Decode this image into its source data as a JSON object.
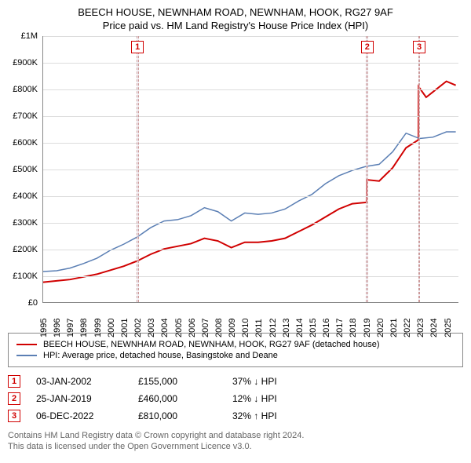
{
  "title_line1": "BEECH HOUSE, NEWNHAM ROAD, NEWNHAM, HOOK, RG27 9AF",
  "title_line2": "Price paid vs. HM Land Registry's House Price Index (HPI)",
  "chart": {
    "type": "line",
    "background_color": "#ffffff",
    "grid_color": "#dddddd",
    "axis_color": "#888888",
    "y": {
      "min": 0,
      "max": 1000000,
      "step": 100000,
      "labels": [
        "£0",
        "£100K",
        "£200K",
        "£300K",
        "£400K",
        "£500K",
        "£600K",
        "£700K",
        "£800K",
        "£900K",
        "£1M"
      ]
    },
    "x": {
      "min": 1995,
      "max": 2025.9,
      "labels": [
        "1995",
        "1996",
        "1997",
        "1998",
        "1999",
        "2000",
        "2001",
        "2002",
        "2003",
        "2004",
        "2005",
        "2006",
        "2007",
        "2008",
        "2009",
        "2010",
        "2011",
        "2012",
        "2013",
        "2014",
        "2015",
        "2016",
        "2017",
        "2018",
        "2019",
        "2020",
        "2021",
        "2022",
        "2023",
        "2024",
        "2025"
      ]
    },
    "markers": [
      {
        "n": "1",
        "year": 2002.01
      },
      {
        "n": "2",
        "year": 2019.07
      },
      {
        "n": "3",
        "year": 2022.93
      }
    ],
    "marker_band_width_years": 0.16,
    "marker_band_color": "rgba(230,230,240,0.5)",
    "marker_border_color": "#cc9999",
    "series": [
      {
        "name": "property",
        "label": "BEECH HOUSE, NEWNHAM ROAD, NEWNHAM, HOOK, RG27 9AF (detached house)",
        "color": "#d00000",
        "width": 2,
        "points": [
          [
            1995,
            75000
          ],
          [
            1996,
            80000
          ],
          [
            1997,
            85000
          ],
          [
            1998,
            95000
          ],
          [
            1999,
            105000
          ],
          [
            2000,
            120000
          ],
          [
            2001,
            135000
          ],
          [
            2002.01,
            155000
          ],
          [
            2003,
            180000
          ],
          [
            2004,
            200000
          ],
          [
            2005,
            210000
          ],
          [
            2006,
            220000
          ],
          [
            2007,
            240000
          ],
          [
            2008,
            230000
          ],
          [
            2009,
            205000
          ],
          [
            2010,
            225000
          ],
          [
            2011,
            225000
          ],
          [
            2012,
            230000
          ],
          [
            2013,
            240000
          ],
          [
            2014,
            265000
          ],
          [
            2015,
            290000
          ],
          [
            2016,
            320000
          ],
          [
            2017,
            350000
          ],
          [
            2018,
            370000
          ],
          [
            2019.06,
            375000
          ],
          [
            2019.07,
            460000
          ],
          [
            2020,
            455000
          ],
          [
            2021,
            505000
          ],
          [
            2022,
            580000
          ],
          [
            2022.92,
            610000
          ],
          [
            2022.93,
            810000
          ],
          [
            2023.5,
            770000
          ],
          [
            2024,
            790000
          ],
          [
            2025,
            830000
          ],
          [
            2025.7,
            815000
          ]
        ]
      },
      {
        "name": "hpi",
        "label": "HPI: Average price, detached house, Basingstoke and Deane",
        "color": "#5b7fb4",
        "width": 1.5,
        "points": [
          [
            1995,
            115000
          ],
          [
            1996,
            118000
          ],
          [
            1997,
            128000
          ],
          [
            1998,
            145000
          ],
          [
            1999,
            165000
          ],
          [
            2000,
            195000
          ],
          [
            2001,
            218000
          ],
          [
            2002,
            245000
          ],
          [
            2003,
            280000
          ],
          [
            2004,
            305000
          ],
          [
            2005,
            310000
          ],
          [
            2006,
            325000
          ],
          [
            2007,
            355000
          ],
          [
            2008,
            340000
          ],
          [
            2009,
            305000
          ],
          [
            2010,
            335000
          ],
          [
            2011,
            330000
          ],
          [
            2012,
            335000
          ],
          [
            2013,
            350000
          ],
          [
            2014,
            380000
          ],
          [
            2015,
            405000
          ],
          [
            2016,
            445000
          ],
          [
            2017,
            475000
          ],
          [
            2018,
            495000
          ],
          [
            2019,
            510000
          ],
          [
            2020,
            518000
          ],
          [
            2021,
            565000
          ],
          [
            2022,
            635000
          ],
          [
            2023,
            615000
          ],
          [
            2024,
            620000
          ],
          [
            2025,
            640000
          ],
          [
            2025.7,
            640000
          ]
        ]
      }
    ]
  },
  "legend": [
    {
      "color": "#d00000",
      "label": "BEECH HOUSE, NEWNHAM ROAD, NEWNHAM, HOOK, RG27 9AF (detached house)"
    },
    {
      "color": "#5b7fb4",
      "label": "HPI: Average price, detached house, Basingstoke and Deane"
    }
  ],
  "transactions": [
    {
      "n": "1",
      "date": "03-JAN-2002",
      "price": "£155,000",
      "diff": "37% ↓ HPI"
    },
    {
      "n": "2",
      "date": "25-JAN-2019",
      "price": "£460,000",
      "diff": "12% ↓ HPI"
    },
    {
      "n": "3",
      "date": "06-DEC-2022",
      "price": "£810,000",
      "diff": "32% ↑ HPI"
    }
  ],
  "footnote_line1": "Contains HM Land Registry data © Crown copyright and database right 2024.",
  "footnote_line2": "This data is licensed under the Open Government Licence v3.0."
}
